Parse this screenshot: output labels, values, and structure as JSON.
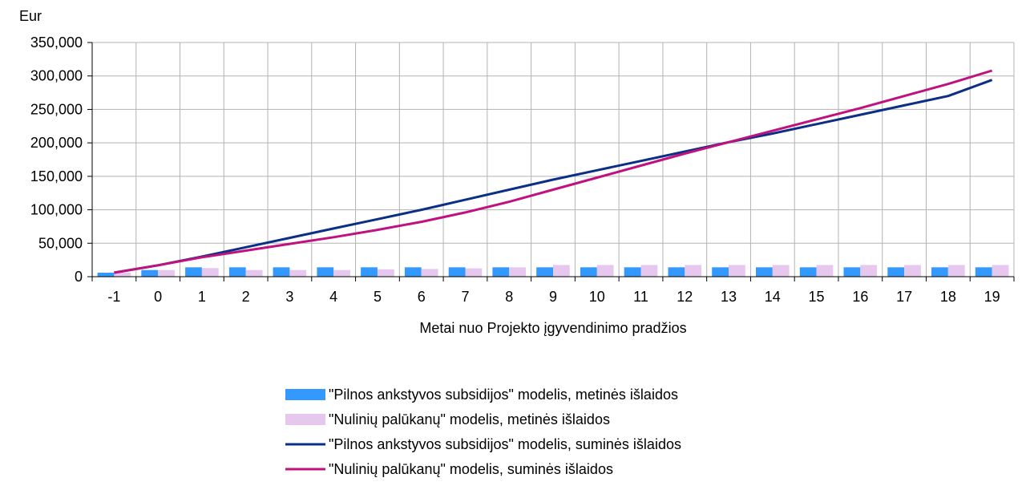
{
  "chart_data": {
    "type": "bar",
    "title": "",
    "ylabel": "Eur",
    "xlabel": "Metai nuo Projekto įgyvendinimo pradžios",
    "ylim": [
      0,
      350000
    ],
    "y_ticks": [
      "0",
      "50,000",
      "100,000",
      "150,000",
      "200,000",
      "250,000",
      "300,000",
      "350,000"
    ],
    "y_tick_values": [
      0,
      50000,
      100000,
      150000,
      200000,
      250000,
      300000,
      350000
    ],
    "categories": [
      "-1",
      "0",
      "1",
      "2",
      "3",
      "4",
      "5",
      "6",
      "7",
      "8",
      "9",
      "10",
      "11",
      "12",
      "13",
      "14",
      "15",
      "16",
      "17",
      "18",
      "19"
    ],
    "grid": true,
    "legend_position": "bottom",
    "series": [
      {
        "name": "\"Pilnos ankstyvos subsidijos\" modelis, metinės išlaidos",
        "kind": "bar",
        "color": "#3399ff",
        "values": [
          6000,
          10000,
          14000,
          14000,
          14000,
          14000,
          14000,
          14000,
          14000,
          14000,
          14000,
          14000,
          14000,
          14000,
          14000,
          14000,
          14000,
          14000,
          14000,
          14000,
          14000
        ]
      },
      {
        "name": "\"Nulinių palūkanų\" modelis, metinės išlaidos",
        "kind": "bar",
        "color": "#e6c8ef",
        "values": [
          6000,
          10000,
          13000,
          10000,
          10000,
          10000,
          11000,
          11500,
          12500,
          14000,
          17500,
          17500,
          17500,
          17500,
          17500,
          17500,
          17500,
          17500,
          17500,
          17500,
          17500
        ]
      },
      {
        "name": "\"Pilnos ankstyvos subsidijos\" modelis, suminės išlaidos",
        "kind": "line",
        "color": "#0b2f87",
        "values": [
          6000,
          17000,
          30000,
          44000,
          58000,
          72000,
          86000,
          100000,
          115000,
          130000,
          145000,
          159000,
          173000,
          187000,
          201000,
          214000,
          228000,
          242000,
          256000,
          270000,
          294000
        ]
      },
      {
        "name": "\"Nulinių palūkanų\" modelis, suminės išlaidos",
        "kind": "line",
        "color": "#c0127f",
        "values": [
          6000,
          17000,
          29000,
          39000,
          49000,
          59000,
          70000,
          82000,
          96000,
          112000,
          130000,
          148000,
          166000,
          184000,
          201000,
          218000,
          235000,
          252000,
          270000,
          288000,
          308000
        ]
      }
    ]
  }
}
